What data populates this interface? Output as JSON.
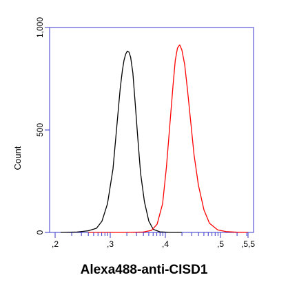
{
  "chart_data": {
    "type": "line",
    "title": "",
    "xlabel": "Alexa488-anti-CISD1",
    "ylabel": "Count",
    "x_tick_labels": [
      ",2",
      ",3",
      ",4",
      ",5",
      ",5,5"
    ],
    "x_tick_values": [
      2,
      3,
      4,
      5,
      5.5
    ],
    "y_tick_labels": [
      "0",
      "500",
      "1,000"
    ],
    "y_tick_values": [
      0,
      500,
      1000
    ],
    "xlim": [
      1.9,
      5.6
    ],
    "ylim": [
      0,
      1000
    ],
    "grid": false,
    "axis_color": "#3333cc",
    "series": [
      {
        "color": "#000000",
        "x": [
          2.1,
          2.4,
          2.6,
          2.75,
          2.85,
          2.95,
          3.05,
          3.12,
          3.18,
          3.22,
          3.25,
          3.28,
          3.31,
          3.34,
          3.37,
          3.41,
          3.45,
          3.5,
          3.55,
          3.62,
          3.7,
          3.78,
          3.9,
          4.1,
          4.3
        ],
        "y": [
          0,
          2,
          8,
          20,
          55,
          140,
          310,
          520,
          700,
          790,
          840,
          870,
          885,
          880,
          855,
          780,
          640,
          460,
          290,
          150,
          55,
          15,
          3,
          0,
          0
        ]
      },
      {
        "color": "#ff0000",
        "x": [
          2.6,
          3.3,
          3.6,
          3.75,
          3.85,
          3.95,
          4.02,
          4.08,
          4.14,
          4.18,
          4.22,
          4.26,
          4.3,
          4.35,
          4.4,
          4.46,
          4.52,
          4.6,
          4.7,
          4.8,
          4.95,
          5.1,
          5.3,
          5.5
        ],
        "y": [
          0,
          0,
          2,
          10,
          40,
          140,
          320,
          520,
          720,
          840,
          900,
          915,
          890,
          820,
          700,
          540,
          380,
          230,
          110,
          45,
          12,
          4,
          1,
          0
        ]
      }
    ]
  }
}
